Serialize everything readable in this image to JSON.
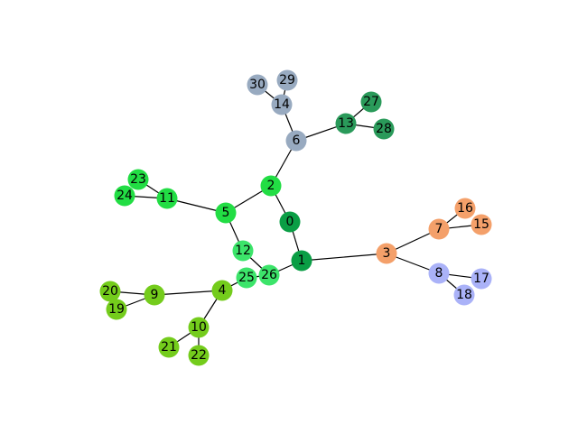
{
  "graph": {
    "colors": {
      "dark_green": "#0a9e45",
      "bright_green": "#22dd44",
      "light_green": "#3ce46a",
      "olive_green": "#74cc1c",
      "teal_green": "#2a9a5a",
      "slate_blue": "#98aac0",
      "orange": "#f4a06a",
      "lavender": "#aab2f8"
    },
    "nodes": [
      {
        "id": "0",
        "color": "dark_green"
      },
      {
        "id": "1",
        "color": "dark_green"
      },
      {
        "id": "2",
        "color": "bright_green"
      },
      {
        "id": "3",
        "color": "orange"
      },
      {
        "id": "4",
        "color": "olive_green"
      },
      {
        "id": "5",
        "color": "bright_green"
      },
      {
        "id": "6",
        "color": "slate_blue"
      },
      {
        "id": "7",
        "color": "orange"
      },
      {
        "id": "8",
        "color": "lavender"
      },
      {
        "id": "9",
        "color": "olive_green"
      },
      {
        "id": "10",
        "color": "olive_green"
      },
      {
        "id": "11",
        "color": "bright_green"
      },
      {
        "id": "12",
        "color": "light_green"
      },
      {
        "id": "13",
        "color": "teal_green"
      },
      {
        "id": "14",
        "color": "slate_blue"
      },
      {
        "id": "15",
        "color": "orange"
      },
      {
        "id": "16",
        "color": "orange"
      },
      {
        "id": "17",
        "color": "lavender"
      },
      {
        "id": "18",
        "color": "lavender"
      },
      {
        "id": "19",
        "color": "olive_green"
      },
      {
        "id": "20",
        "color": "olive_green"
      },
      {
        "id": "21",
        "color": "olive_green"
      },
      {
        "id": "22",
        "color": "olive_green"
      },
      {
        "id": "23",
        "color": "bright_green"
      },
      {
        "id": "24",
        "color": "bright_green"
      },
      {
        "id": "25",
        "color": "light_green"
      },
      {
        "id": "26",
        "color": "light_green"
      },
      {
        "id": "27",
        "color": "teal_green"
      },
      {
        "id": "28",
        "color": "teal_green"
      },
      {
        "id": "29",
        "color": "slate_blue"
      },
      {
        "id": "30",
        "color": "slate_blue"
      }
    ],
    "edges": [
      [
        "0",
        "1"
      ],
      [
        "0",
        "2"
      ],
      [
        "1",
        "3"
      ],
      [
        "1",
        "26"
      ],
      [
        "2",
        "5"
      ],
      [
        "2",
        "6"
      ],
      [
        "3",
        "7"
      ],
      [
        "3",
        "8"
      ],
      [
        "4",
        "9"
      ],
      [
        "4",
        "10"
      ],
      [
        "4",
        "25"
      ],
      [
        "5",
        "11"
      ],
      [
        "5",
        "12"
      ],
      [
        "6",
        "13"
      ],
      [
        "6",
        "14"
      ],
      [
        "7",
        "15"
      ],
      [
        "7",
        "16"
      ],
      [
        "8",
        "17"
      ],
      [
        "8",
        "18"
      ],
      [
        "9",
        "19"
      ],
      [
        "9",
        "20"
      ],
      [
        "10",
        "21"
      ],
      [
        "10",
        "22"
      ],
      [
        "11",
        "23"
      ],
      [
        "11",
        "24"
      ],
      [
        "12",
        "26"
      ],
      [
        "13",
        "27"
      ],
      [
        "13",
        "28"
      ],
      [
        "14",
        "29"
      ],
      [
        "14",
        "30"
      ],
      [
        "25",
        "26"
      ]
    ]
  }
}
